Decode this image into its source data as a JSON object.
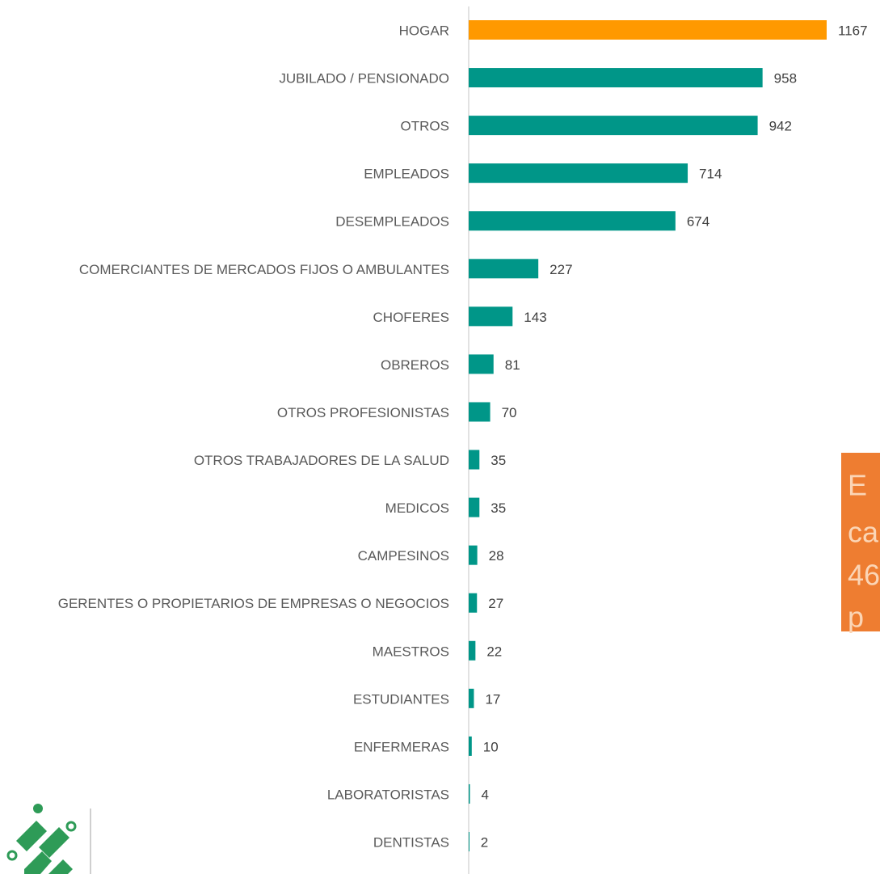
{
  "chart_data": {
    "type": "hbar",
    "categories": [
      "HOGAR",
      "JUBILADO / PENSIONADO",
      "OTROS",
      "EMPLEADOS",
      "DESEMPLEADOS",
      "COMERCIANTES DE MERCADOS FIJOS O AMBULANTES",
      "CHOFERES",
      "OBREROS",
      "OTROS PROFESIONISTAS",
      "OTROS TRABAJADORES DE LA SALUD",
      "MEDICOS",
      "CAMPESINOS",
      "GERENTES O PROPIETARIOS DE EMPRESAS O NEGOCIOS",
      "MAESTROS",
      "ESTUDIANTES",
      "ENFERMERAS",
      "LABORATORISTAS",
      "DENTISTAS"
    ],
    "values": [
      1167,
      958,
      942,
      714,
      674,
      227,
      143,
      81,
      70,
      35,
      35,
      28,
      27,
      22,
      17,
      10,
      4,
      2
    ],
    "colors": [
      "#ff9900",
      "#009688",
      "#009688",
      "#009688",
      "#009688",
      "#009688",
      "#009688",
      "#009688",
      "#009688",
      "#009688",
      "#009688",
      "#009688",
      "#009688",
      "#009688",
      "#009688",
      "#009688",
      "#009688",
      "#009688"
    ],
    "xlim": [
      0,
      1167
    ],
    "annotation": {
      "lines": [
        "E",
        "ca",
        "46",
        "p"
      ]
    }
  }
}
